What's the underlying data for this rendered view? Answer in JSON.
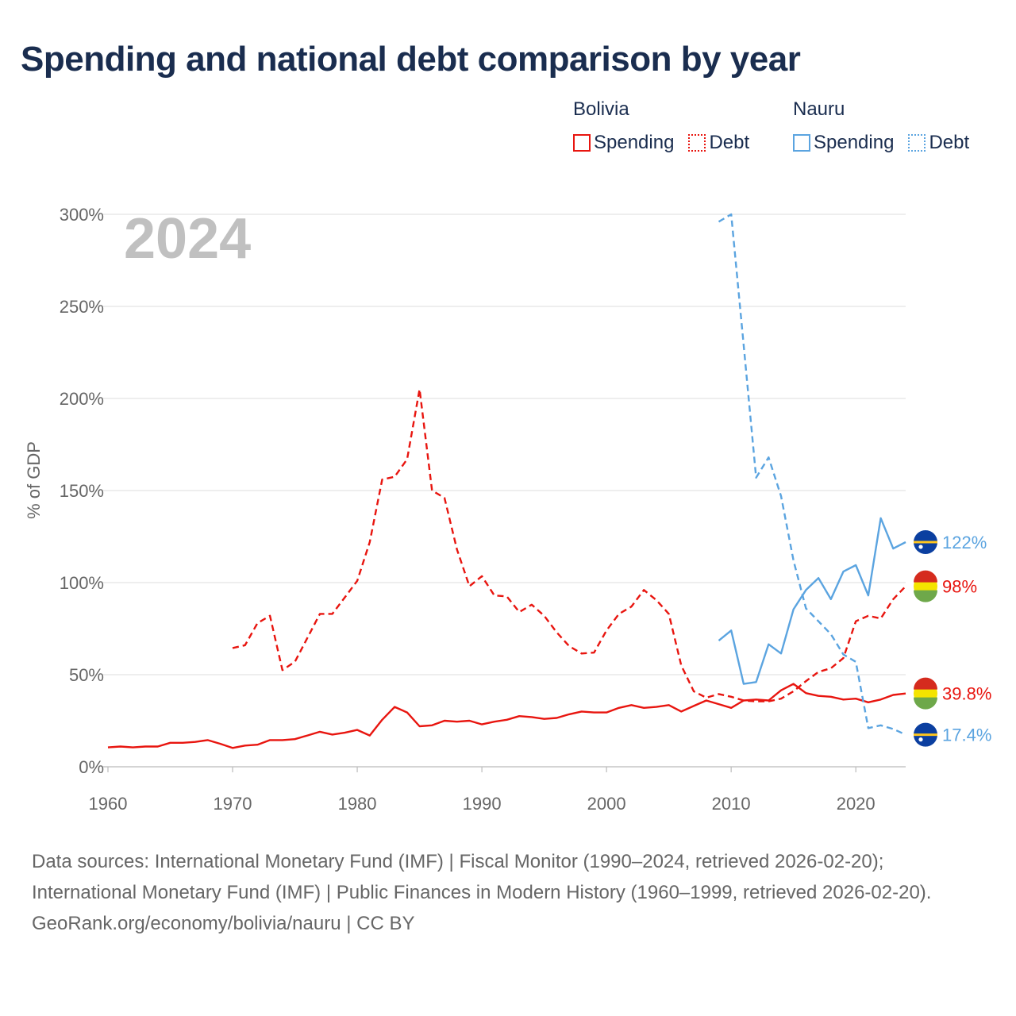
{
  "title": "Spending and national debt comparison by year",
  "legend": {
    "groups": [
      {
        "name": "Bolivia",
        "color": "#e8150f",
        "items": [
          {
            "label": "Spending",
            "style": "solid"
          },
          {
            "label": "Debt",
            "style": "dotted"
          }
        ]
      },
      {
        "name": "Nauru",
        "color": "#5ba4e0",
        "items": [
          {
            "label": "Spending",
            "style": "solid"
          },
          {
            "label": "Debt",
            "style": "dotted"
          }
        ]
      }
    ]
  },
  "chart_data": {
    "type": "line",
    "title": "Spending and national debt comparison by year",
    "year_label": "2024",
    "xlabel": "",
    "ylabel": "% of GDP",
    "xlim": [
      1960,
      2024
    ],
    "ylim": [
      0,
      300
    ],
    "xticks": [
      1960,
      1970,
      1980,
      1990,
      2000,
      2010,
      2020
    ],
    "yticks": [
      0,
      50,
      100,
      150,
      200,
      250,
      300
    ],
    "ytick_labels": [
      "0%",
      "50%",
      "100%",
      "150%",
      "200%",
      "250%",
      "300%"
    ],
    "grid": true,
    "series": [
      {
        "name": "Bolivia Spending",
        "country": "Bolivia",
        "metric": "Spending",
        "color": "#e8150f",
        "dash": "solid",
        "end_label": "39.8%",
        "x": [
          1960,
          1961,
          1962,
          1963,
          1964,
          1965,
          1966,
          1967,
          1968,
          1969,
          1970,
          1971,
          1972,
          1973,
          1974,
          1975,
          1976,
          1977,
          1978,
          1979,
          1980,
          1981,
          1982,
          1983,
          1984,
          1985,
          1986,
          1987,
          1988,
          1989,
          1990,
          1991,
          1992,
          1993,
          1994,
          1995,
          1996,
          1997,
          1998,
          1999,
          2000,
          2001,
          2002,
          2003,
          2004,
          2005,
          2006,
          2007,
          2008,
          2009,
          2010,
          2011,
          2012,
          2013,
          2014,
          2015,
          2016,
          2017,
          2018,
          2019,
          2020,
          2021,
          2022,
          2023,
          2024
        ],
        "y": [
          10.5,
          11,
          10.5,
          11,
          11,
          13,
          13,
          13.5,
          14.5,
          12.5,
          10.2,
          11.5,
          12,
          14.5,
          14.5,
          15,
          17,
          19,
          17.5,
          18.5,
          20,
          17,
          25.5,
          32.5,
          29.5,
          22,
          22.5,
          25,
          24.5,
          25,
          23,
          24.5,
          25.5,
          27.5,
          27,
          26,
          26.5,
          28.5,
          30,
          29.5,
          29.5,
          32,
          33.5,
          32,
          32.5,
          33.5,
          30,
          33,
          36,
          34,
          32,
          36,
          36.5,
          36,
          41.5,
          45,
          40,
          38.5,
          38,
          36.5,
          37,
          35,
          36.5,
          39,
          39.8
        ]
      },
      {
        "name": "Bolivia Debt",
        "country": "Bolivia",
        "metric": "Debt",
        "color": "#e8150f",
        "dash": "dashed",
        "end_label": "98%",
        "x": [
          1970,
          1971,
          1972,
          1973,
          1974,
          1975,
          1976,
          1977,
          1978,
          1979,
          1980,
          1981,
          1982,
          1983,
          1984,
          1985,
          1986,
          1987,
          1988,
          1989,
          1990,
          1991,
          1992,
          1993,
          1994,
          1995,
          1996,
          1997,
          1998,
          1999,
          2000,
          2001,
          2002,
          2003,
          2004,
          2005,
          2006,
          2007,
          2008,
          2009,
          2010,
          2011,
          2012,
          2013,
          2014,
          2015,
          2016,
          2017,
          2018,
          2019,
          2020,
          2021,
          2022,
          2023,
          2024
        ],
        "y": [
          64.5,
          66,
          78,
          82,
          52.5,
          57,
          70,
          83,
          83,
          92,
          101,
          122,
          156,
          157.5,
          167,
          205,
          150,
          146,
          118,
          98,
          103.5,
          93,
          92.5,
          84,
          88,
          82,
          73,
          65.5,
          61.5,
          62,
          74,
          83,
          87,
          96,
          90.5,
          83,
          55,
          41,
          37.5,
          39.5,
          38,
          36,
          35.5,
          35.5,
          37,
          41,
          46.5,
          51.5,
          53.5,
          59,
          79,
          82,
          80.5,
          91,
          98
        ]
      },
      {
        "name": "Nauru Spending",
        "country": "Nauru",
        "metric": "Spending",
        "color": "#5ba4e0",
        "dash": "solid",
        "end_label": "122%",
        "x": [
          2009,
          2010,
          2011,
          2012,
          2013,
          2014,
          2015,
          2016,
          2017,
          2018,
          2019,
          2020,
          2021,
          2022,
          2023,
          2024
        ],
        "y": [
          68.5,
          74,
          45,
          46,
          66.5,
          61.5,
          85.5,
          96,
          102.5,
          91,
          106,
          109.5,
          93,
          135,
          118.5,
          122
        ]
      },
      {
        "name": "Nauru Debt",
        "country": "Nauru",
        "metric": "Debt",
        "color": "#5ba4e0",
        "dash": "dashed",
        "end_label": "17.4%",
        "x": [
          2009,
          2010,
          2011,
          2012,
          2013,
          2014,
          2015,
          2016,
          2017,
          2018,
          2019,
          2020,
          2021,
          2022,
          2023,
          2024
        ],
        "y": [
          296,
          300,
          229,
          157,
          168,
          147,
          112,
          86,
          79,
          72,
          61,
          57,
          21,
          22.5,
          20.5,
          17.4
        ]
      }
    ]
  },
  "footer": {
    "sources": "Data sources: International Monetary Fund (IMF) | Fiscal Monitor (1990–2024, retrieved 2026-02-20); International Monetary Fund (IMF) | Public Finances in Modern History (1960–1999, retrieved 2026-02-20).",
    "credit": "GeoRank.org/economy/bolivia/nauru | CC BY"
  }
}
